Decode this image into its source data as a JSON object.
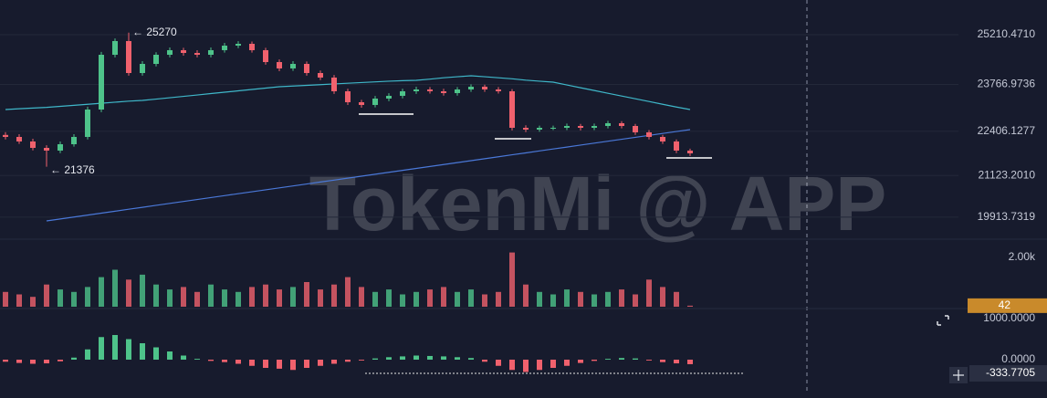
{
  "chart_data": {
    "type": "candlestick",
    "watermark": "TokenMi @ APP",
    "up_color": "#4ec38a",
    "down_color": "#f0616d",
    "ylim": [
      19327,
      26217
    ],
    "yticks": [
      {
        "value": 25210.471,
        "label": "25210.4710"
      },
      {
        "value": 23766.9736,
        "label": "23766.9736"
      },
      {
        "value": 22406.1277,
        "label": "22406.1277"
      },
      {
        "value": 21123.201,
        "label": "21123.2010"
      },
      {
        "value": 19913.7319,
        "label": "19913.7319"
      }
    ],
    "grid": true,
    "annotations": [
      {
        "text": "← 25270"
      },
      {
        "text": "← 21376"
      }
    ],
    "open": [
      22300,
      22242,
      22110,
      21924,
      21845,
      22030,
      22242,
      23037,
      24627,
      25025,
      24097,
      24362,
      24627,
      24760,
      24680,
      24627,
      24760,
      24892,
      24945,
      24760,
      24415,
      24230,
      24362,
      24097,
      23965,
      23567,
      23249,
      23170,
      23355,
      23435,
      23567,
      23620,
      23567,
      23514,
      23620,
      23700,
      23620,
      23567,
      22507,
      22454,
      22507,
      22507,
      22560,
      22507,
      22560,
      22640,
      22560,
      22375,
      22242,
      22110,
      21845
    ],
    "high": [
      22380,
      22320,
      22190,
      22000,
      22110,
      22320,
      23120,
      24710,
      25100,
      25270,
      24440,
      24700,
      24840,
      24830,
      24760,
      24840,
      24970,
      25020,
      25010,
      24830,
      24490,
      24440,
      24430,
      24170,
      24040,
      23640,
      23320,
      23430,
      23510,
      23640,
      23700,
      23690,
      23640,
      23690,
      23770,
      23760,
      23690,
      23630,
      22580,
      22570,
      22570,
      22630,
      22620,
      22630,
      22710,
      22700,
      22620,
      22440,
      22300,
      22170,
      21900
    ],
    "low": [
      22170,
      22040,
      21850,
      21376,
      21770,
      21960,
      22170,
      22960,
      24550,
      24020,
      24020,
      24290,
      24550,
      24600,
      24550,
      24550,
      24690,
      24820,
      24690,
      24340,
      24150,
      24160,
      24020,
      23890,
      23490,
      23170,
      23090,
      23100,
      23280,
      23360,
      23490,
      23500,
      23440,
      23440,
      23550,
      23550,
      23500,
      22430,
      22380,
      22390,
      22440,
      22440,
      22430,
      22440,
      22490,
      22490,
      22300,
      22170,
      22040,
      21770,
      21690
    ],
    "close": [
      22242,
      22110,
      21924,
      21845,
      22030,
      22242,
      23037,
      24627,
      25025,
      24097,
      24362,
      24627,
      24760,
      24680,
      24627,
      24760,
      24892,
      24945,
      24760,
      24415,
      24230,
      24362,
      24097,
      23965,
      23567,
      23249,
      23170,
      23355,
      23435,
      23567,
      23620,
      23567,
      23514,
      23620,
      23700,
      23620,
      23567,
      22507,
      22454,
      22507,
      22507,
      22560,
      22507,
      22560,
      22640,
      22560,
      22375,
      22242,
      22110,
      21845,
      21765
    ],
    "lines": [
      {
        "color": "#4a78d8",
        "values": [
          null,
          null,
          null,
          19804,
          19860,
          19917,
          19973,
          20030,
          20086,
          20143,
          20199,
          20256,
          20312,
          20368,
          20425,
          20481,
          20538,
          20594,
          20651,
          20707,
          20763,
          20820,
          20876,
          20933,
          20989,
          21046,
          21102,
          21158,
          21215,
          21271,
          21328,
          21384,
          21441,
          21497,
          21553,
          21610,
          21666,
          21723,
          21779,
          21836,
          21892,
          21948,
          22005,
          22061,
          22118,
          22174,
          22231,
          22287,
          22343,
          22400,
          22454
        ]
      },
      {
        "color": "#3fb7c9",
        "values": [
          23037,
          23060,
          23080,
          23100,
          23130,
          23160,
          23190,
          23220,
          23250,
          23280,
          23302,
          23340,
          23380,
          23420,
          23460,
          23500,
          23540,
          23580,
          23620,
          23660,
          23700,
          23720,
          23740,
          23760,
          23780,
          23800,
          23820,
          23840,
          23860,
          23875,
          23885,
          23920,
          23960,
          23990,
          24017,
          23990,
          23960,
          23930,
          23890,
          23860,
          23832,
          23750,
          23670,
          23590,
          23510,
          23430,
          23350,
          23270,
          23190,
          23110,
          23037
        ]
      }
    ],
    "volume": {
      "ylim": [
        0,
        2444
      ],
      "yticks": [
        {
          "value": 2000,
          "label": "2.00k"
        }
      ],
      "values": [
        600,
        500,
        400,
        900,
        700,
        600,
        800,
        1200,
        1500,
        1100,
        1300,
        900,
        700,
        800,
        600,
        900,
        700,
        600,
        800,
        900,
        700,
        800,
        1000,
        700,
        900,
        1200,
        800,
        600,
        700,
        500,
        600,
        700,
        800,
        600,
        700,
        500,
        600,
        2200,
        900,
        600,
        500,
        700,
        600,
        500,
        600,
        700,
        500,
        1100,
        800,
        600,
        42
      ]
    },
    "macd": {
      "ylim": [
        -622,
        1200
      ],
      "yticks": [
        {
          "value": 1000,
          "label": "1000.0000"
        },
        {
          "value": 0,
          "label": "0.0000"
        }
      ],
      "current": -333.7705,
      "values": [
        -50,
        -80,
        -100,
        -90,
        -40,
        50,
        250,
        550,
        600,
        500,
        400,
        300,
        200,
        100,
        20,
        -30,
        -60,
        -100,
        -150,
        -200,
        -220,
        -250,
        -200,
        -150,
        -100,
        -50,
        -20,
        30,
        60,
        80,
        100,
        90,
        80,
        60,
        40,
        -50,
        -150,
        -250,
        -300,
        -250,
        -200,
        -150,
        -80,
        -30,
        20,
        40,
        30,
        -20,
        -60,
        -90,
        -110
      ]
    }
  }
}
